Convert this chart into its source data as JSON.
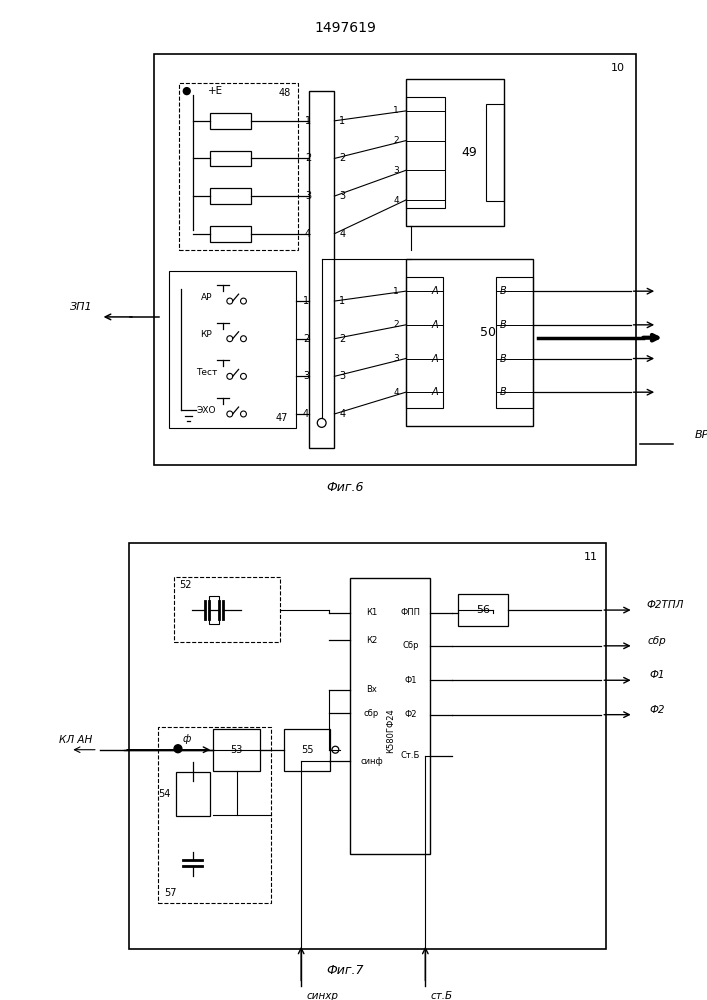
{
  "title": "1497619",
  "fig6_label": "Фиг.6",
  "fig7_label": "Фиг.7",
  "background": "#ffffff",
  "line_color": "#000000"
}
